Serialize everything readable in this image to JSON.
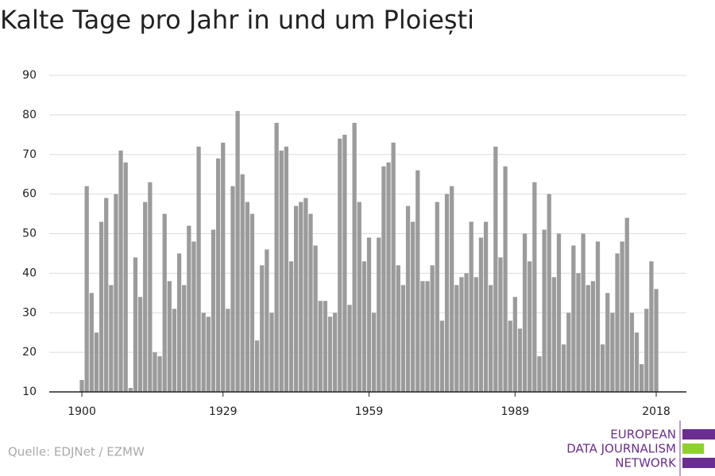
{
  "chart_data": {
    "type": "bar",
    "title": "Kalte Tage pro Jahr in und um Ploiești",
    "source": "Quelle: EDJNet / EZMW",
    "logo": [
      "EUROPEAN",
      "DATA JOURNALISM",
      "NETWORK"
    ],
    "color": "#9b9b9b",
    "x": [
      1900,
      1901,
      1902,
      1903,
      1904,
      1905,
      1906,
      1907,
      1908,
      1909,
      1910,
      1911,
      1912,
      1913,
      1914,
      1915,
      1916,
      1917,
      1918,
      1919,
      1920,
      1921,
      1922,
      1923,
      1924,
      1925,
      1926,
      1927,
      1928,
      1929,
      1930,
      1931,
      1932,
      1933,
      1934,
      1935,
      1936,
      1937,
      1938,
      1939,
      1940,
      1941,
      1942,
      1943,
      1944,
      1945,
      1946,
      1947,
      1948,
      1949,
      1950,
      1951,
      1952,
      1953,
      1954,
      1955,
      1956,
      1957,
      1958,
      1959,
      1960,
      1961,
      1962,
      1963,
      1964,
      1965,
      1966,
      1967,
      1968,
      1969,
      1970,
      1971,
      1972,
      1973,
      1974,
      1975,
      1976,
      1977,
      1978,
      1979,
      1980,
      1981,
      1982,
      1983,
      1984,
      1985,
      1986,
      1987,
      1988,
      1989,
      1990,
      1991,
      1992,
      1993,
      1994,
      1995,
      1996,
      1997,
      1998,
      1999,
      2000,
      2001,
      2002,
      2003,
      2004,
      2005,
      2006,
      2007,
      2008,
      2009,
      2010,
      2011,
      2012,
      2013,
      2014,
      2015,
      2016,
      2017,
      2018
    ],
    "values": [
      13,
      62,
      35,
      25,
      53,
      59,
      37,
      60,
      71,
      68,
      11,
      44,
      34,
      58,
      63,
      20,
      19,
      55,
      38,
      31,
      45,
      37,
      52,
      48,
      72,
      30,
      29,
      51,
      69,
      73,
      31,
      62,
      81,
      65,
      58,
      55,
      23,
      42,
      46,
      30,
      78,
      71,
      72,
      43,
      57,
      58,
      59,
      55,
      47,
      33,
      33,
      29,
      30,
      74,
      75,
      32,
      78,
      58,
      43,
      49,
      30,
      49,
      67,
      68,
      73,
      42,
      37,
      57,
      53,
      66,
      38,
      38,
      42,
      58,
      28,
      60,
      62,
      37,
      39,
      40,
      53,
      39,
      49,
      53,
      37,
      72,
      44,
      67,
      28,
      34,
      26,
      50,
      43,
      63,
      19,
      51,
      60,
      39,
      50,
      22,
      30,
      47,
      40,
      50,
      37,
      38,
      48,
      22,
      35,
      30,
      45,
      48,
      54,
      30,
      25,
      17,
      31,
      43,
      36
    ],
    "xlim": [
      1893.3,
      2024.2
    ],
    "xticks": [
      1900,
      1929,
      1959,
      1989,
      2018
    ],
    "ylim": [
      10,
      90
    ],
    "yticks": [
      10,
      20,
      30,
      40,
      50,
      60,
      70,
      80,
      90
    ],
    "grid": true
  }
}
